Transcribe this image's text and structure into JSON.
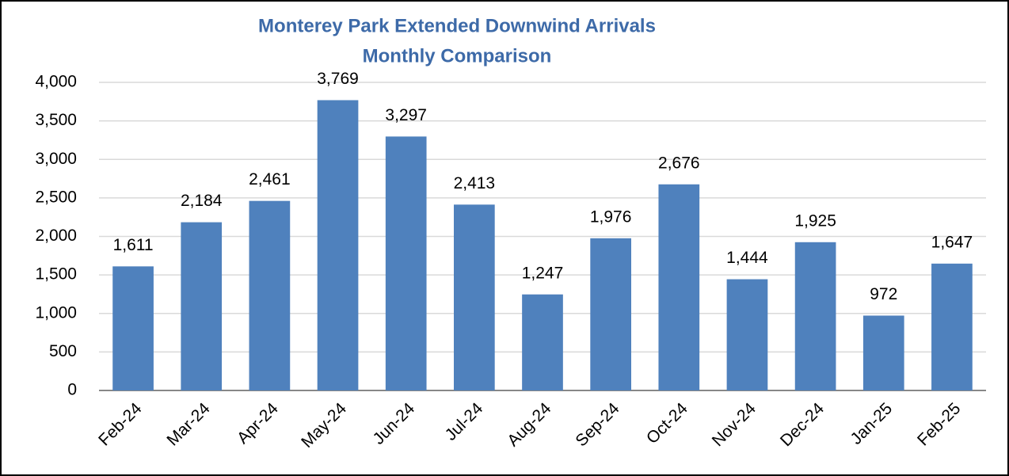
{
  "chart_data": {
    "type": "bar",
    "title": [
      "Monterey Park Extended Downwind Arrivals",
      "Monthly Comparison"
    ],
    "categories": [
      "Feb-24",
      "Mar-24",
      "Apr-24",
      "May-24",
      "Jun-24",
      "Jul-24",
      "Aug-24",
      "Sep-24",
      "Oct-24",
      "Nov-24",
      "Dec-24",
      "Jan-25",
      "Feb-25"
    ],
    "values": [
      1611,
      2184,
      2461,
      3769,
      3297,
      2413,
      1247,
      1976,
      2676,
      1444,
      1925,
      972,
      1647
    ],
    "value_labels": [
      "1,611",
      "2,184",
      "2,461",
      "3,769",
      "3,297",
      "2,413",
      "1,247",
      "1,976",
      "2,676",
      "1,444",
      "1,925",
      "972",
      "1,647"
    ],
    "color": "#4f81bd",
    "ylim": [
      0,
      4000
    ],
    "yticks": [
      0,
      500,
      {
        "value": 1000,
        "label": "1,000"
      },
      {
        "value": 1500,
        "label": "1,500"
      },
      {
        "value": 2000,
        "label": "2,000"
      },
      {
        "value": 2500,
        "label": "2,500"
      },
      {
        "value": 3000,
        "label": "3,000"
      },
      {
        "value": 3500,
        "label": "3,500"
      },
      {
        "value": 4000,
        "label": "4,000"
      }
    ],
    "grid": true
  }
}
